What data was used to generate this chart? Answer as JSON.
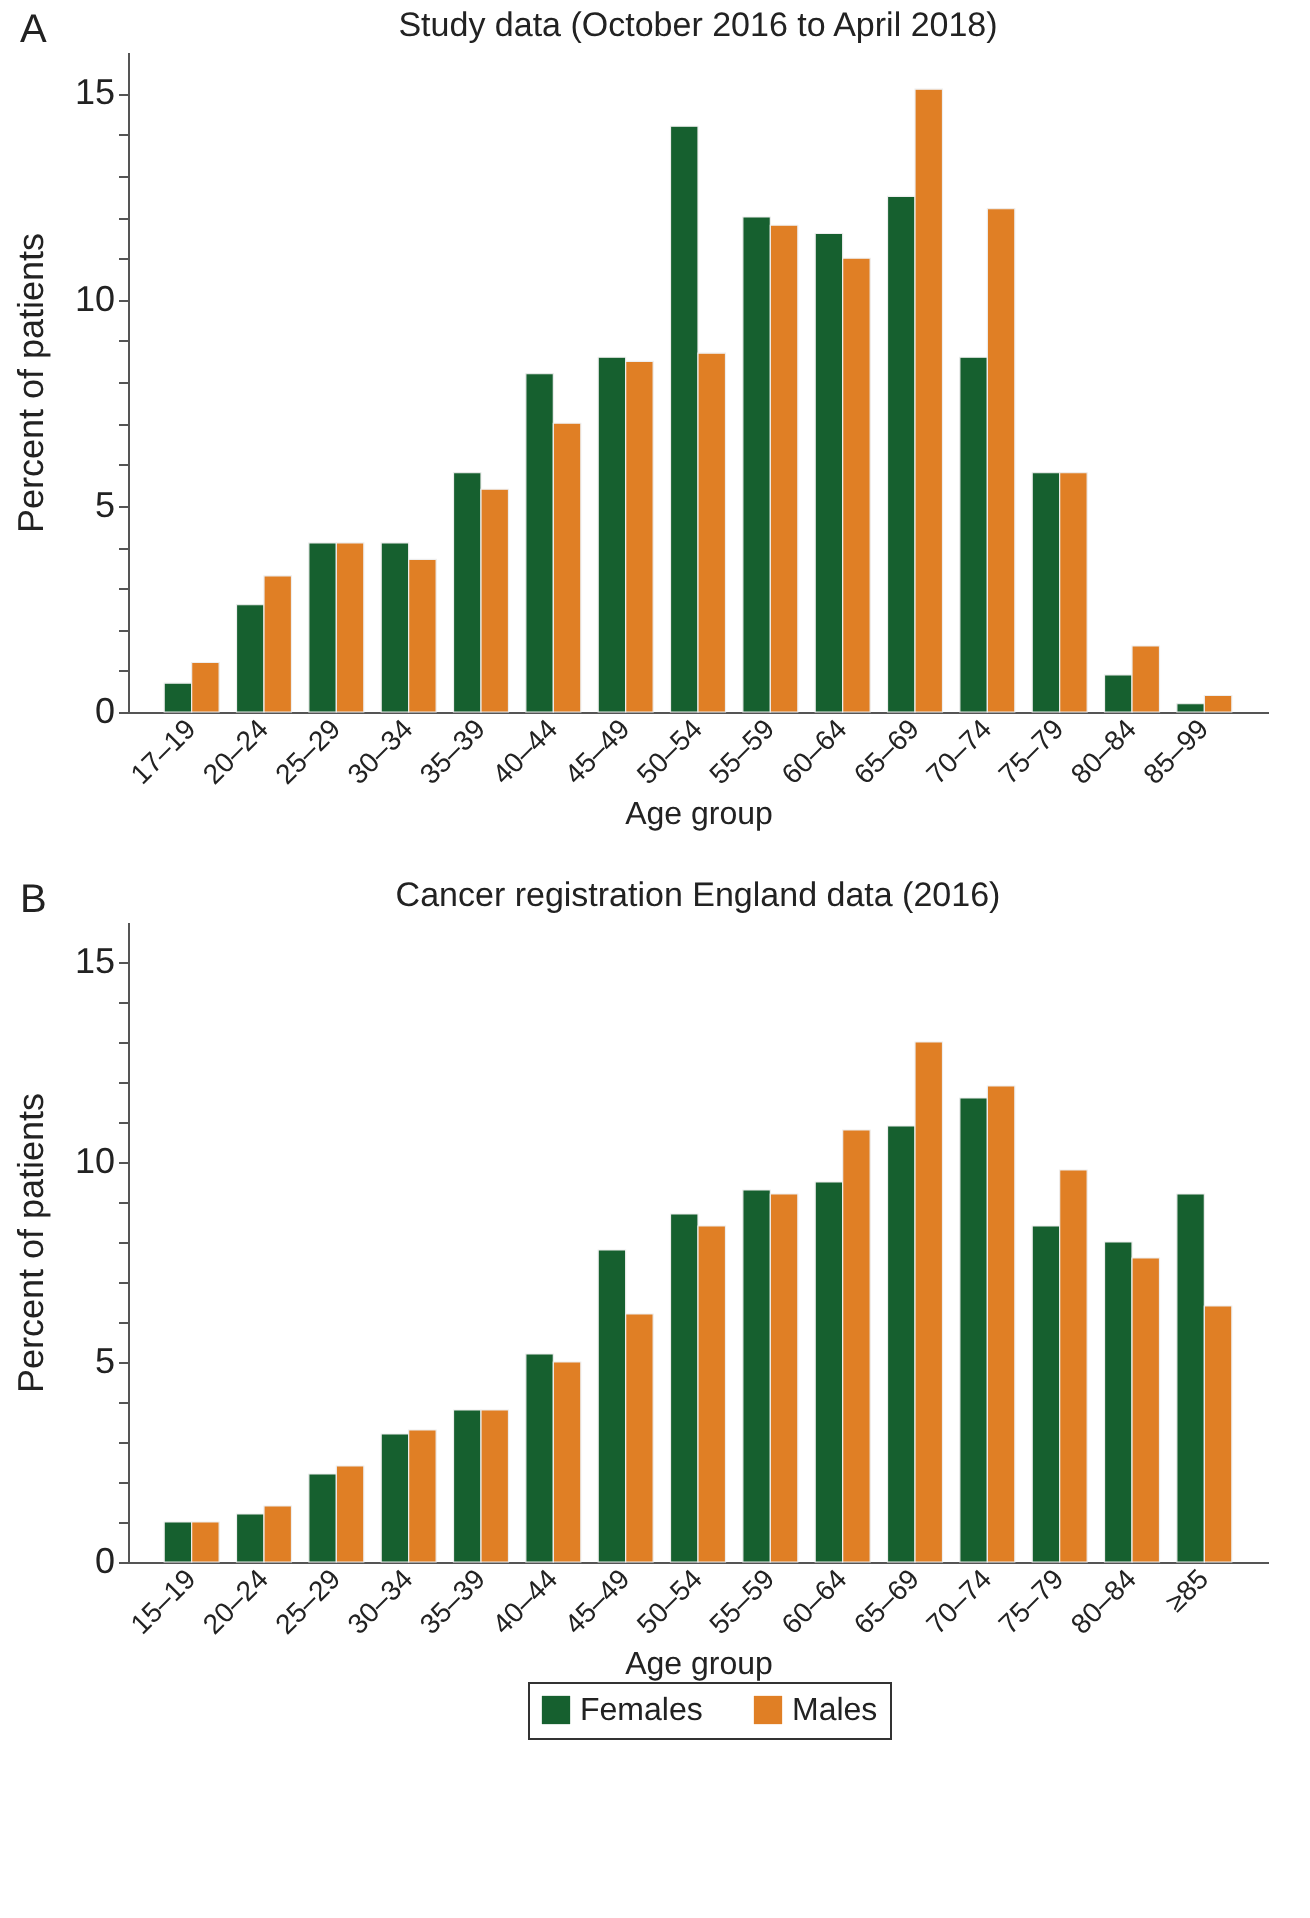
{
  "chart_data": [
    {
      "type": "bar",
      "title": "Study data (October 2016 to April 2018)",
      "annotations": [
        "A"
      ],
      "xlabel": "Age group",
      "ylabel": "Percent of patients",
      "categories": [
        "17–19",
        "20–24",
        "25–29",
        "30–34",
        "35–39",
        "40–44",
        "45–49",
        "50–54",
        "55–59",
        "60–64",
        "65–69",
        "70–74",
        "75–79",
        "80–84",
        "85–99"
      ],
      "series": [
        {
          "color": "#16602f",
          "values": [
            0.7,
            2.6,
            4.1,
            4.1,
            5.8,
            8.2,
            8.6,
            14.2,
            12.0,
            11.6,
            12.5,
            8.6,
            5.8,
            0.9,
            0.2
          ]
        },
        {
          "color": "#e07f25",
          "values": [
            1.2,
            3.3,
            4.1,
            3.7,
            5.4,
            7.0,
            8.5,
            8.7,
            11.8,
            11.0,
            15.1,
            12.2,
            5.8,
            1.6,
            0.4
          ]
        }
      ],
      "ylim": [
        0,
        16
      ],
      "yticks": [
        0,
        {
          "value": 1,
          "label": null
        },
        {
          "value": 2,
          "label": null
        },
        {
          "value": 3,
          "label": null
        },
        {
          "value": 4,
          "label": null
        },
        5,
        {
          "value": 6,
          "label": null
        },
        {
          "value": 7,
          "label": null
        },
        {
          "value": 8,
          "label": null
        },
        {
          "value": 9,
          "label": null
        },
        10,
        {
          "value": 11,
          "label": null
        },
        {
          "value": 12,
          "label": null
        },
        {
          "value": 13,
          "label": null
        },
        {
          "value": 14,
          "label": null
        },
        15
      ],
      "tick_labels": true
    },
    {
      "type": "bar",
      "title": "Cancer registration England data (2016)",
      "annotations": [
        "B"
      ],
      "xlabel": "Age group",
      "ylabel": "Percent of patients",
      "categories": [
        "15–19",
        "20–24",
        "25–29",
        "30–34",
        "35–39",
        "40–44",
        "45–49",
        "50–54",
        "55–59",
        "60–64",
        "65–69",
        "70–74",
        "75–79",
        "80–84",
        "≥85"
      ],
      "series": [
        {
          "name": "Females",
          "color": "#16602f",
          "values": [
            1.0,
            1.2,
            2.2,
            3.2,
            3.8,
            5.2,
            7.8,
            8.7,
            9.3,
            9.5,
            10.9,
            11.6,
            8.4,
            8.0,
            9.2
          ]
        },
        {
          "name": "Males",
          "color": "#e07f25",
          "values": [
            1.0,
            1.4,
            2.4,
            3.3,
            3.8,
            5.0,
            6.2,
            8.4,
            9.2,
            10.8,
            13.0,
            11.9,
            9.8,
            7.6,
            6.4
          ]
        }
      ],
      "ylim": [
        0,
        16
      ],
      "yticks": [
        0,
        {
          "value": 1,
          "label": null
        },
        {
          "value": 2,
          "label": null
        },
        {
          "value": 3,
          "label": null
        },
        {
          "value": 4,
          "label": null
        },
        5,
        {
          "value": 6,
          "label": null
        },
        {
          "value": 7,
          "label": null
        },
        {
          "value": 8,
          "label": null
        },
        {
          "value": 9,
          "label": null
        },
        10,
        {
          "value": 11,
          "label": null
        },
        {
          "value": 12,
          "label": null
        },
        {
          "value": 13,
          "label": null
        },
        {
          "value": 14,
          "label": null
        },
        15
      ],
      "legend": "bottom"
    }
  ]
}
